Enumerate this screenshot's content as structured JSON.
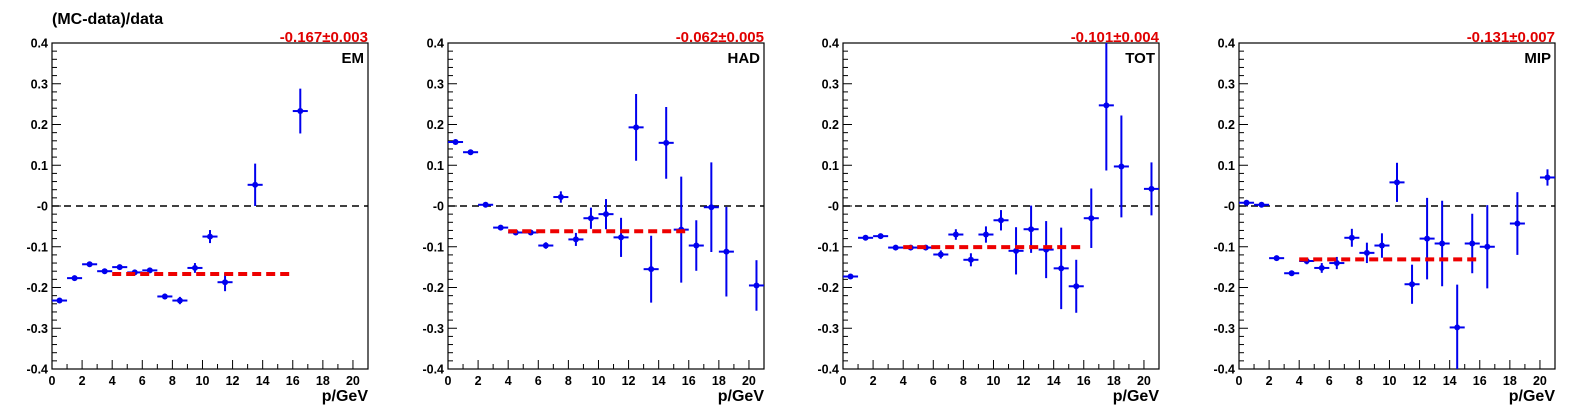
{
  "figure": {
    "ylabel": "(MC-data)/data"
  },
  "colors": {
    "points": "#0000ee",
    "fit": "#ee0000",
    "zero_line": "#000000",
    "axes": "#000000"
  },
  "chart_data": [
    {
      "type": "scatter",
      "tag": "EM",
      "fit_label": "-0.167±0.003",
      "fit_value": -0.167,
      "fit_range": [
        4,
        16
      ],
      "xlabel": "p/GeV",
      "xlim": [
        0,
        21
      ],
      "ylim": [
        -0.4,
        0.4
      ],
      "xticks": [
        0,
        2,
        4,
        6,
        8,
        10,
        12,
        14,
        16,
        18,
        20
      ],
      "yticks": [
        -0.4,
        -0.3,
        -0.2,
        -0.1,
        0,
        0.1,
        0.2,
        0.3,
        0.4
      ],
      "ytick_labels": [
        "-0.4",
        "-0.3",
        "-0.2",
        "-0.1",
        "-0",
        "0.1",
        "0.2",
        "0.3",
        "0.4"
      ],
      "points": [
        {
          "x": 0.5,
          "y": -0.232,
          "err": 0.006
        },
        {
          "x": 1.5,
          "y": -0.177,
          "err": 0.006
        },
        {
          "x": 2.5,
          "y": -0.143,
          "err": 0.005
        },
        {
          "x": 3.5,
          "y": -0.16,
          "err": 0.005
        },
        {
          "x": 4.5,
          "y": -0.15,
          "err": 0.005
        },
        {
          "x": 5.5,
          "y": -0.163,
          "err": 0.005
        },
        {
          "x": 6.5,
          "y": -0.158,
          "err": 0.006
        },
        {
          "x": 7.5,
          "y": -0.222,
          "err": 0.007
        },
        {
          "x": 8.5,
          "y": -0.232,
          "err": 0.009
        },
        {
          "x": 9.5,
          "y": -0.152,
          "err": 0.012
        },
        {
          "x": 10.5,
          "y": -0.075,
          "err": 0.016
        },
        {
          "x": 11.5,
          "y": -0.187,
          "err": 0.022
        },
        {
          "x": 13.5,
          "y": 0.052,
          "err": 0.052
        },
        {
          "x": 16.5,
          "y": 0.233,
          "err": 0.055
        }
      ]
    },
    {
      "type": "scatter",
      "tag": "HAD",
      "fit_label": "-0.062±0.005",
      "fit_value": -0.062,
      "fit_range": [
        4,
        16
      ],
      "xlabel": "p/GeV",
      "xlim": [
        0,
        21
      ],
      "ylim": [
        -0.4,
        0.4
      ],
      "xticks": [
        0,
        2,
        4,
        6,
        8,
        10,
        12,
        14,
        16,
        18,
        20
      ],
      "yticks": [
        -0.4,
        -0.3,
        -0.2,
        -0.1,
        0,
        0.1,
        0.2,
        0.3,
        0.4
      ],
      "ytick_labels": [
        "-0.4",
        "-0.3",
        "-0.2",
        "-0.1",
        "-0",
        "0.1",
        "0.2",
        "0.3",
        "0.4"
      ],
      "points": [
        {
          "x": 0.5,
          "y": 0.157,
          "err": 0.004
        },
        {
          "x": 1.5,
          "y": 0.132,
          "err": 0.004
        },
        {
          "x": 2.5,
          "y": 0.003,
          "err": 0.004
        },
        {
          "x": 3.5,
          "y": -0.053,
          "err": 0.004
        },
        {
          "x": 4.5,
          "y": -0.065,
          "err": 0.005
        },
        {
          "x": 5.5,
          "y": -0.065,
          "err": 0.006
        },
        {
          "x": 6.5,
          "y": -0.097,
          "err": 0.008
        },
        {
          "x": 7.5,
          "y": 0.022,
          "err": 0.014
        },
        {
          "x": 8.5,
          "y": -0.082,
          "err": 0.016
        },
        {
          "x": 9.5,
          "y": -0.03,
          "err": 0.026
        },
        {
          "x": 10.5,
          "y": -0.02,
          "err": 0.037
        },
        {
          "x": 11.5,
          "y": -0.077,
          "err": 0.048
        },
        {
          "x": 12.5,
          "y": 0.193,
          "err": 0.082
        },
        {
          "x": 13.5,
          "y": -0.155,
          "err": 0.082
        },
        {
          "x": 14.5,
          "y": 0.155,
          "err": 0.088
        },
        {
          "x": 15.5,
          "y": -0.058,
          "err": 0.13
        },
        {
          "x": 16.5,
          "y": -0.097,
          "err": 0.062
        },
        {
          "x": 17.5,
          "y": -0.003,
          "err": 0.11
        },
        {
          "x": 18.5,
          "y": -0.112,
          "err": 0.11
        },
        {
          "x": 20.5,
          "y": -0.195,
          "err": 0.062
        }
      ]
    },
    {
      "type": "scatter",
      "tag": "TOT",
      "fit_label": "-0.101±0.004",
      "fit_value": -0.101,
      "fit_range": [
        4,
        16
      ],
      "xlabel": "p/GeV",
      "xlim": [
        0,
        21
      ],
      "ylim": [
        -0.4,
        0.4
      ],
      "xticks": [
        0,
        2,
        4,
        6,
        8,
        10,
        12,
        14,
        16,
        18,
        20
      ],
      "yticks": [
        -0.4,
        -0.3,
        -0.2,
        -0.1,
        0,
        0.1,
        0.2,
        0.3,
        0.4
      ],
      "ytick_labels": [
        "-0.4",
        "-0.3",
        "-0.2",
        "-0.1",
        "-0",
        "0.1",
        "0.2",
        "0.3",
        "0.4"
      ],
      "points": [
        {
          "x": 0.5,
          "y": -0.173,
          "err": 0.006
        },
        {
          "x": 1.5,
          "y": -0.078,
          "err": 0.004
        },
        {
          "x": 2.5,
          "y": -0.074,
          "err": 0.004
        },
        {
          "x": 3.5,
          "y": -0.102,
          "err": 0.004
        },
        {
          "x": 4.5,
          "y": -0.102,
          "err": 0.005
        },
        {
          "x": 5.5,
          "y": -0.102,
          "err": 0.005
        },
        {
          "x": 6.5,
          "y": -0.119,
          "err": 0.01
        },
        {
          "x": 7.5,
          "y": -0.07,
          "err": 0.013
        },
        {
          "x": 8.5,
          "y": -0.132,
          "err": 0.016
        },
        {
          "x": 9.5,
          "y": -0.07,
          "err": 0.02
        },
        {
          "x": 10.5,
          "y": -0.035,
          "err": 0.025
        },
        {
          "x": 11.5,
          "y": -0.11,
          "err": 0.058
        },
        {
          "x": 12.5,
          "y": -0.057,
          "err": 0.058
        },
        {
          "x": 13.5,
          "y": -0.107,
          "err": 0.07
        },
        {
          "x": 14.5,
          "y": -0.153,
          "err": 0.1
        },
        {
          "x": 15.5,
          "y": -0.197,
          "err": 0.065
        },
        {
          "x": 16.5,
          "y": -0.03,
          "err": 0.073
        },
        {
          "x": 17.5,
          "y": 0.247,
          "err": 0.16
        },
        {
          "x": 18.5,
          "y": 0.097,
          "err": 0.125
        },
        {
          "x": 20.5,
          "y": 0.042,
          "err": 0.065
        }
      ]
    },
    {
      "type": "scatter",
      "tag": "MIP",
      "fit_label": "-0.131±0.007",
      "fit_value": -0.131,
      "fit_range": [
        4,
        16
      ],
      "xlabel": "p/GeV",
      "xlim": [
        0,
        21
      ],
      "ylim": [
        -0.4,
        0.4
      ],
      "xticks": [
        0,
        2,
        4,
        6,
        8,
        10,
        12,
        14,
        16,
        18,
        20
      ],
      "yticks": [
        -0.4,
        -0.3,
        -0.2,
        -0.1,
        0,
        0.1,
        0.2,
        0.3,
        0.4
      ],
      "ytick_labels": [
        "-0.4",
        "-0.3",
        "-0.2",
        "-0.1",
        "-0",
        "0.1",
        "0.2",
        "0.3",
        "0.4"
      ],
      "points": [
        {
          "x": 0.5,
          "y": 0.008,
          "err": 0.005
        },
        {
          "x": 1.5,
          "y": 0.003,
          "err": 0.004
        },
        {
          "x": 2.5,
          "y": -0.128,
          "err": 0.005
        },
        {
          "x": 3.5,
          "y": -0.165,
          "err": 0.006
        },
        {
          "x": 4.5,
          "y": -0.135,
          "err": 0.008
        },
        {
          "x": 5.5,
          "y": -0.152,
          "err": 0.012
        },
        {
          "x": 6.5,
          "y": -0.14,
          "err": 0.015
        },
        {
          "x": 7.5,
          "y": -0.078,
          "err": 0.022
        },
        {
          "x": 8.5,
          "y": -0.115,
          "err": 0.025
        },
        {
          "x": 9.5,
          "y": -0.097,
          "err": 0.03
        },
        {
          "x": 10.5,
          "y": 0.058,
          "err": 0.048
        },
        {
          "x": 11.5,
          "y": -0.192,
          "err": 0.048
        },
        {
          "x": 12.5,
          "y": -0.08,
          "err": 0.1
        },
        {
          "x": 13.5,
          "y": -0.092,
          "err": 0.105
        },
        {
          "x": 14.5,
          "y": -0.298,
          "err": 0.105
        },
        {
          "x": 15.5,
          "y": -0.092,
          "err": 0.073
        },
        {
          "x": 16.5,
          "y": -0.1,
          "err": 0.102
        },
        {
          "x": 18.5,
          "y": -0.043,
          "err": 0.077
        },
        {
          "x": 20.5,
          "y": 0.07,
          "err": 0.02
        }
      ]
    }
  ]
}
